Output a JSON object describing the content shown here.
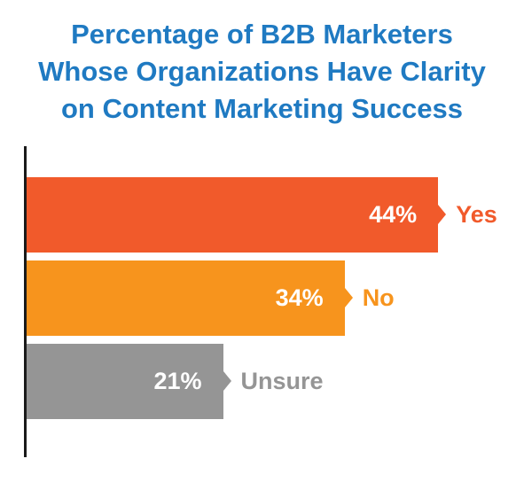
{
  "chart_data": {
    "type": "bar",
    "orientation": "horizontal",
    "title_lines": [
      "Percentage of B2B Marketers",
      "Whose Organizations Have Clarity",
      "on Content Marketing Success"
    ],
    "categories": [
      "Yes",
      "No",
      "Unsure"
    ],
    "values": [
      44,
      34,
      21
    ],
    "value_labels": [
      "44%",
      "34%",
      "21%"
    ],
    "colors": [
      "#f15a2b",
      "#f7941d",
      "#959595"
    ],
    "label_colors": [
      "#f15a2b",
      "#f7941d",
      "#959595"
    ],
    "xlim": [
      0,
      50
    ],
    "grid": false,
    "legend": "none"
  }
}
